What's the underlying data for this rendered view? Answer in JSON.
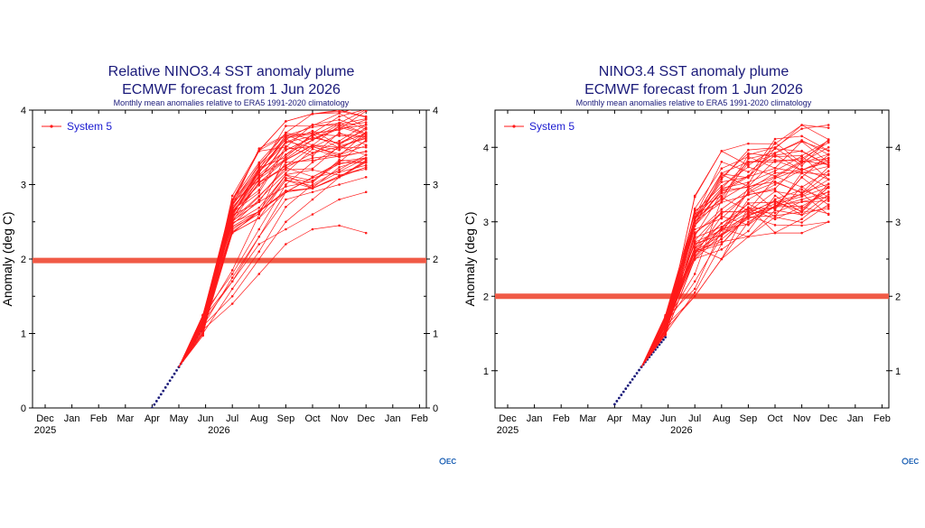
{
  "chart_data": [
    {
      "type": "line",
      "title": "Relative NINO3.4 SST anomaly plume",
      "subtitle": "ECMWF forecast from 1 Jun 2026",
      "subsubtitle": "Monthly mean anomalies relative to ERA5 1991-2020 climatology",
      "ylabel": "Anomaly (deg C)",
      "ylim": [
        0,
        4
      ],
      "yticks": [
        "0",
        "1",
        "2",
        "3",
        "4"
      ],
      "x_categories": [
        "Dec",
        "Jan",
        "Feb",
        "Mar",
        "Apr",
        "May",
        "Jun",
        "Jul",
        "Aug",
        "Sep",
        "Oct",
        "Nov",
        "Dec",
        "Jan",
        "Feb"
      ],
      "x_years": [
        "2025",
        "2026"
      ],
      "legend": "System 5",
      "reference_line": 1.98,
      "observed": [
        [
          4.0,
          0.0
        ],
        [
          5.0,
          0.55
        ],
        [
          5.9,
          1.08
        ]
      ],
      "forecast_start": 5.9,
      "forecast_start_range": [
        0.97,
        1.25
      ],
      "forecast_end": 12.0,
      "envelope_low": [
        1.55,
        2.35,
        2.55,
        2.9,
        2.95,
        3.1,
        3.2
      ],
      "envelope_high": [
        1.95,
        2.85,
        3.5,
        3.85,
        3.95,
        4.0,
        4.05
      ],
      "member_count": 51,
      "members": [
        [
          1.05,
          1.4,
          1.8,
          2.2,
          2.4,
          2.45,
          2.35
        ],
        [
          1.1,
          1.5,
          2.0,
          2.5,
          2.8,
          3.1,
          3.3
        ],
        [
          1.15,
          1.7,
          2.3,
          2.9,
          3.1,
          3.3,
          3.6
        ],
        [
          1.2,
          1.85,
          2.6,
          3.4,
          3.6,
          3.75,
          3.8
        ],
        [
          1.25,
          1.8,
          2.4,
          3.0,
          3.3,
          3.5,
          3.5
        ],
        [
          1.0,
          1.6,
          2.1,
          2.7,
          3.0,
          3.2,
          3.4
        ],
        [
          1.1,
          1.75,
          2.3,
          2.8,
          2.9,
          3.0,
          3.1
        ],
        [
          1.2,
          1.7,
          2.2,
          2.4,
          2.6,
          2.8,
          2.9
        ]
      ],
      "colors": {
        "members": "#ff1a1a",
        "observed": "#1a1a7a",
        "reference": "#f05a46",
        "axis": "#000000"
      }
    },
    {
      "type": "line",
      "title": "NINO3.4 SST anomaly plume",
      "subtitle": "ECMWF forecast from 1 Jun 2026",
      "subsubtitle": "Monthly mean anomalies relative to ERA5 1991-2020 climatology",
      "ylabel": "Anomaly (deg C)",
      "ylim": [
        0.5,
        4.5
      ],
      "yticks": [
        "1",
        "2",
        "3",
        "4"
      ],
      "x_categories": [
        "Dec",
        "Jan",
        "Feb",
        "Mar",
        "Apr",
        "May",
        "Jun",
        "Jul",
        "Aug",
        "Sep",
        "Oct",
        "Nov",
        "Dec",
        "Jan",
        "Feb"
      ],
      "x_years": [
        "2025",
        "2026"
      ],
      "legend": "System 5",
      "reference_line": 2.0,
      "observed": [
        [
          4.0,
          0.55
        ],
        [
          5.0,
          1.05
        ],
        [
          5.9,
          1.45
        ]
      ],
      "forecast_start": 5.9,
      "forecast_start_range": [
        1.48,
        1.75
      ],
      "forecast_end": 12.0,
      "envelope_low": [
        1.9,
        2.45,
        2.5,
        2.8,
        2.85,
        2.95,
        3.0
      ],
      "envelope_high": [
        2.35,
        3.35,
        3.95,
        4.05,
        4.25,
        4.3,
        4.35
      ],
      "member_count": 51,
      "members": [
        [
          1.6,
          2.0,
          2.5,
          3.0,
          3.2,
          3.6,
          3.9
        ],
        [
          1.65,
          2.3,
          3.3,
          3.9,
          4.0,
          4.25,
          4.3
        ],
        [
          1.55,
          2.0,
          2.5,
          2.8,
          2.85,
          2.85,
          3.0
        ],
        [
          1.7,
          2.1,
          2.9,
          3.4,
          3.6,
          3.8,
          4.0
        ],
        [
          1.5,
          2.05,
          2.7,
          3.1,
          3.2,
          3.3,
          3.4
        ],
        [
          1.62,
          2.2,
          2.8,
          3.3,
          3.5,
          3.7,
          3.8
        ]
      ],
      "colors": {
        "members": "#ff1a1a",
        "observed": "#1a1a7a",
        "reference": "#f05a46",
        "axis": "#000000"
      }
    }
  ],
  "logo_text": "EC"
}
